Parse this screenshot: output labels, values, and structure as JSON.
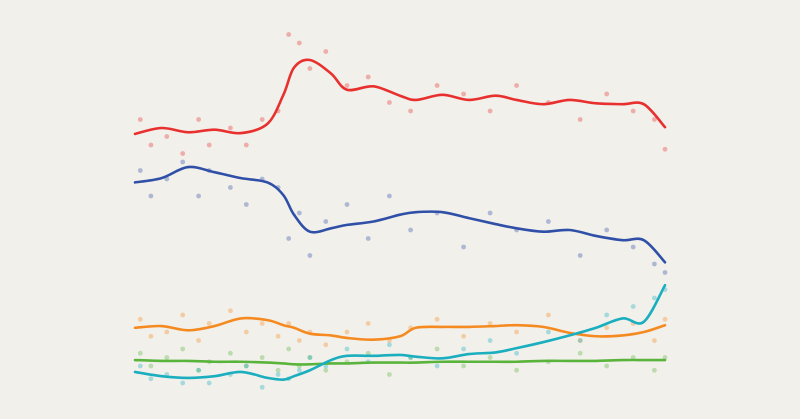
{
  "chart_data": {
    "type": "line",
    "xlim": [
      0,
      100
    ],
    "ylim": [
      0,
      47
    ],
    "x": [
      0,
      5,
      10,
      15,
      20,
      25,
      28,
      30,
      33,
      37,
      40,
      45,
      50,
      53,
      58,
      63,
      68,
      72,
      77,
      82,
      87,
      92,
      96,
      100
    ],
    "dot_x": [
      1,
      3,
      6,
      9,
      12,
      14,
      18,
      21,
      24,
      27,
      29,
      31,
      33,
      36,
      40,
      44,
      48,
      52,
      57,
      62,
      67,
      72,
      78,
      84,
      89,
      94,
      98,
      100
    ],
    "series": [
      {
        "color": "#e8302e",
        "values": [
          31.3,
          32.0,
          31.5,
          31.8,
          31.4,
          32.5,
          35.9,
          39.1,
          40.0,
          38.4,
          36.5,
          36.9,
          35.8,
          35.3,
          35.9,
          35.3,
          35.8,
          35.3,
          34.8,
          35.3,
          34.9,
          34.8,
          34.8,
          32.1
        ],
        "dot_values": [
          33,
          30,
          31,
          29,
          33,
          30,
          32,
          30,
          33,
          34,
          43,
          42,
          39,
          41,
          37,
          38,
          35,
          34,
          37,
          36,
          34,
          37,
          35,
          33,
          36,
          34,
          33,
          29.5
        ]
      },
      {
        "color": "#3050a8",
        "values": [
          25.6,
          26.1,
          27.4,
          26.8,
          26.1,
          25.6,
          24.1,
          21.8,
          19.8,
          20.2,
          20.6,
          21.0,
          21.8,
          22.1,
          22.1,
          21.4,
          20.7,
          20.2,
          19.8,
          20.0,
          19.3,
          18.8,
          18.8,
          16.2
        ],
        "dot_values": [
          27,
          24,
          26,
          28,
          24,
          27,
          25,
          23,
          26,
          25,
          19,
          22,
          17,
          21,
          23,
          19,
          24,
          20,
          22,
          18,
          22,
          20,
          21,
          17,
          20,
          18,
          16,
          15
        ]
      },
      {
        "color": "#f58a20",
        "values": [
          8.5,
          8.7,
          8.2,
          8.7,
          9.6,
          9.4,
          8.8,
          8.5,
          7.8,
          7.6,
          7.3,
          7.1,
          7.5,
          8.5,
          8.6,
          8.6,
          8.7,
          8.8,
          8.6,
          7.9,
          7.5,
          7.6,
          8.0,
          8.8
        ],
        "dot_values": [
          9.5,
          7.5,
          8,
          10,
          7,
          9,
          10.5,
          8,
          9,
          7.5,
          9,
          7,
          8,
          6.5,
          8,
          9,
          7,
          8.5,
          9.5,
          7.5,
          9,
          8,
          10,
          7,
          8.5,
          9,
          7,
          9.5
        ]
      },
      {
        "color": "#5ab43c",
        "values": [
          4.7,
          4.6,
          4.6,
          4.5,
          4.5,
          4.4,
          4.3,
          4.2,
          4.2,
          4.3,
          4.3,
          4.4,
          4.4,
          4.4,
          4.5,
          4.5,
          4.5,
          4.5,
          4.6,
          4.6,
          4.6,
          4.7,
          4.7,
          4.7
        ],
        "dot_values": [
          5.5,
          4,
          5,
          6,
          3.5,
          4.5,
          5.5,
          4,
          5,
          3.5,
          6,
          4,
          5,
          3.5,
          4.5,
          5.5,
          3,
          5,
          6,
          4,
          5,
          3.5,
          4.5,
          5.5,
          4,
          5,
          3.5,
          5
        ]
      },
      {
        "color": "#1aaebf",
        "values": [
          3.3,
          2.8,
          2.6,
          2.8,
          3.3,
          2.6,
          2.4,
          2.8,
          3.5,
          4.7,
          5.2,
          5.2,
          5.3,
          5.1,
          4.9,
          5.4,
          5.6,
          6.1,
          6.8,
          7.6,
          8.5,
          9.6,
          9.2,
          13.5
        ],
        "dot_values": [
          4,
          2.5,
          3,
          2,
          3.5,
          2,
          3,
          4,
          1.5,
          3,
          2.5,
          3.5,
          5,
          4,
          6,
          4.5,
          6.5,
          5,
          4,
          6,
          7,
          5.5,
          8,
          7,
          10,
          11,
          12,
          13
        ]
      }
    ]
  }
}
